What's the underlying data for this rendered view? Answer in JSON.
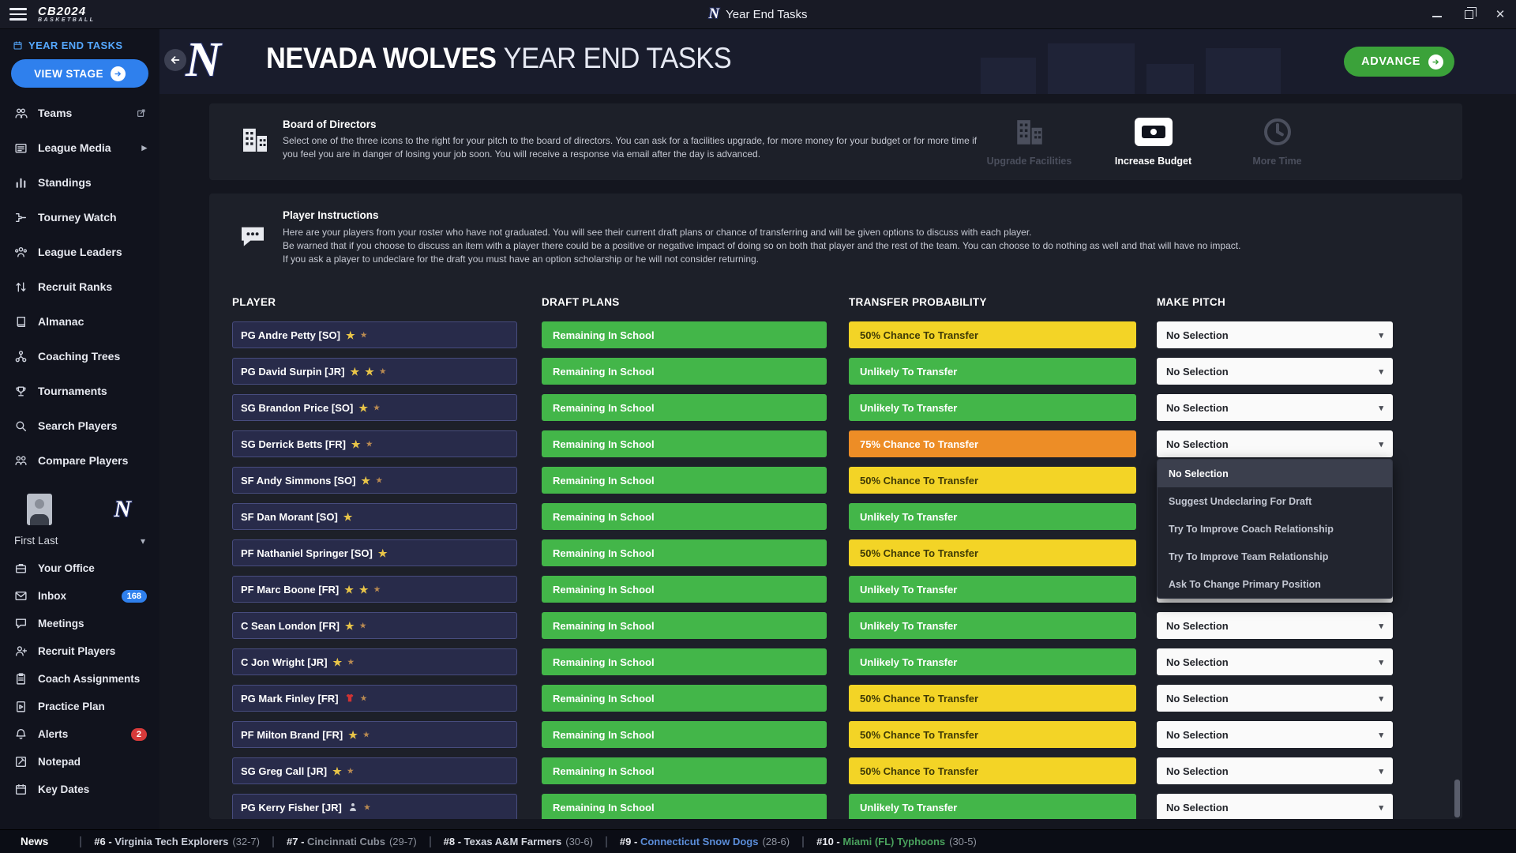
{
  "titlebar": {
    "title": "Year End Tasks",
    "logo_line1": "CB2024",
    "logo_line2": "BASKETBALL",
    "logo_letter": "N"
  },
  "sidebar": {
    "stage_label": "YEAR END TASKS",
    "view_stage_label": "VIEW STAGE",
    "nav_top": [
      {
        "label": "Teams",
        "icon": "teams",
        "trailing": "popout"
      },
      {
        "label": "League Media",
        "icon": "media",
        "trailing": "chevron"
      },
      {
        "label": "Standings",
        "icon": "standings"
      },
      {
        "label": "Tourney Watch",
        "icon": "tourney"
      },
      {
        "label": "League Leaders",
        "icon": "leaders"
      },
      {
        "label": "Recruit Ranks",
        "icon": "ranks"
      },
      {
        "label": "Almanac",
        "icon": "almanac"
      },
      {
        "label": "Coaching Trees",
        "icon": "trees"
      },
      {
        "label": "Tournaments",
        "icon": "tournaments"
      },
      {
        "label": "Search Players",
        "icon": "search"
      },
      {
        "label": "Compare Players",
        "icon": "compare"
      }
    ],
    "profile_name": "First Last",
    "team_logo_letter": "N",
    "nav_bottom": [
      {
        "label": "Your Office",
        "icon": "office"
      },
      {
        "label": "Inbox",
        "icon": "inbox",
        "badge": "168",
        "badge_color": "blue"
      },
      {
        "label": "Meetings",
        "icon": "meetings"
      },
      {
        "label": "Recruit Players",
        "icon": "recruit"
      },
      {
        "label": "Coach Assignments",
        "icon": "assignments"
      },
      {
        "label": "Practice Plan",
        "icon": "practice"
      },
      {
        "label": "Alerts",
        "icon": "alerts",
        "badge": "2",
        "badge_color": "red"
      },
      {
        "label": "Notepad",
        "icon": "notepad"
      },
      {
        "label": "Key Dates",
        "icon": "dates"
      }
    ]
  },
  "header": {
    "title_team": "NEVADA WOLVES",
    "title_rest": "YEAR END TASKS",
    "advance_label": "ADVANCE",
    "logo_letter": "N"
  },
  "board": {
    "title": "Board of Directors",
    "description": "Select one of the three icons to the right for your pitch to the board of directors. You can ask for a facilities upgrade, for more money for your budget or for more time if you feel you are in danger of losing your job soon. You will receive a response via email after the day is advanced.",
    "options": [
      {
        "label": "Upgrade Facilities",
        "icon": "building",
        "state": "disabled"
      },
      {
        "label": "Increase Budget",
        "icon": "cash",
        "state": "selected"
      },
      {
        "label": "More Time",
        "icon": "clock",
        "state": "disabled"
      }
    ]
  },
  "instructions": {
    "title": "Player Instructions",
    "lines": [
      "Here are your players from your roster who have not graduated. You will see their current draft plans or chance of transferring and will be given options to discuss with each player.",
      "Be warned that if you choose to discuss an item with a player there could be a positive or negative impact of doing so on both that player and the rest of the team. You can choose to do nothing as well and that will have no impact.",
      "If you ask a player to undeclare for the draft you must have an option scholarship or he will not consider returning."
    ]
  },
  "table": {
    "headers": [
      "PLAYER",
      "DRAFT PLANS",
      "TRANSFER PROBABILITY",
      "MAKE PITCH"
    ],
    "rows": [
      {
        "player": "PG Andre Petty [SO]",
        "stars": 1,
        "half": true,
        "special": null,
        "draft": "Remaining In School",
        "transfer": "50% Chance To Transfer",
        "transfer_level": "mid",
        "pitch": "No Selection"
      },
      {
        "player": "PG David Surpin [JR]",
        "stars": 2,
        "half": true,
        "special": null,
        "draft": "Remaining In School",
        "transfer": "Unlikely To Transfer",
        "transfer_level": "low",
        "pitch": "No Selection"
      },
      {
        "player": "SG Brandon Price [SO]",
        "stars": 1,
        "half": true,
        "special": null,
        "draft": "Remaining In School",
        "transfer": "Unlikely To Transfer",
        "transfer_level": "low",
        "pitch": "No Selection"
      },
      {
        "player": "SG Derrick Betts [FR]",
        "stars": 1,
        "half": true,
        "special": null,
        "draft": "Remaining In School",
        "transfer": "75% Chance To Transfer",
        "transfer_level": "high",
        "pitch": "No Selection"
      },
      {
        "player": "SF Andy Simmons [SO]",
        "stars": 1,
        "half": true,
        "special": null,
        "draft": "Remaining In School",
        "transfer": "50% Chance To Transfer",
        "transfer_level": "mid",
        "pitch": "No Selection"
      },
      {
        "player": "SF Dan Morant [SO]",
        "stars": 1,
        "half": false,
        "special": null,
        "draft": "Remaining In School",
        "transfer": "Unlikely To Transfer",
        "transfer_level": "low",
        "pitch": "No Selection"
      },
      {
        "player": "PF Nathaniel Springer [SO]",
        "stars": 1,
        "half": false,
        "special": null,
        "draft": "Remaining In School",
        "transfer": "50% Chance To Transfer",
        "transfer_level": "mid",
        "pitch": "No Selection"
      },
      {
        "player": "PF Marc Boone [FR]",
        "stars": 2,
        "half": true,
        "special": null,
        "draft": "Remaining In School",
        "transfer": "Unlikely To Transfer",
        "transfer_level": "low",
        "pitch": "No Selection"
      },
      {
        "player": "C Sean London [FR]",
        "stars": 1,
        "half": true,
        "special": null,
        "draft": "Remaining In School",
        "transfer": "Unlikely To Transfer",
        "transfer_level": "low",
        "pitch": "No Selection"
      },
      {
        "player": "C Jon Wright [JR]",
        "stars": 1,
        "half": true,
        "special": null,
        "draft": "Remaining In School",
        "transfer": "Unlikely To Transfer",
        "transfer_level": "low",
        "pitch": "No Selection"
      },
      {
        "player": "PG Mark Finley [FR]",
        "stars": 0,
        "half": true,
        "special": "redshirt",
        "draft": "Remaining In School",
        "transfer": "50% Chance To Transfer",
        "transfer_level": "mid",
        "pitch": "No Selection"
      },
      {
        "player": "PF Milton Brand [FR]",
        "stars": 1,
        "half": true,
        "special": null,
        "draft": "Remaining In School",
        "transfer": "50% Chance To Transfer",
        "transfer_level": "mid",
        "pitch": "No Selection"
      },
      {
        "player": "SG Greg Call [JR]",
        "stars": 1,
        "half": true,
        "special": null,
        "draft": "Remaining In School",
        "transfer": "50% Chance To Transfer",
        "transfer_level": "mid",
        "pitch": "No Selection"
      },
      {
        "player": "PG Kerry Fisher [JR]",
        "stars": 0,
        "half": true,
        "special": "walkon",
        "draft": "Remaining In School",
        "transfer": "Unlikely To Transfer",
        "transfer_level": "low",
        "pitch": "No Selection"
      }
    ],
    "open_row": 3,
    "open_menu": {
      "options": [
        "No Selection",
        "Suggest Undeclaring For Draft",
        "Try To Improve Coach Relationship",
        "Try To Improve Team Relationship",
        "Ask To Change Primary Position"
      ],
      "highlighted": "No Selection"
    }
  },
  "ticker": {
    "label": "News",
    "items": [
      {
        "rank": "#6",
        "name": "Virginia Tech Explorers",
        "record": "(32-7)",
        "color": "#c9ced9"
      },
      {
        "rank": "#7",
        "name": "Cincinnati Cubs",
        "record": "(29-7)",
        "color": "#8a8f99"
      },
      {
        "rank": "#8",
        "name": "Texas A&M Farmers",
        "record": "(30-6)",
        "color": "#d2d6df"
      },
      {
        "rank": "#9",
        "name": "Connecticut Snow Dogs",
        "record": "(28-6)",
        "color": "#5b8dd9"
      },
      {
        "rank": "#10",
        "name": "Miami (FL) Typhoons",
        "record": "(30-5)",
        "color": "#49a05c"
      }
    ]
  },
  "colors": {
    "accent_blue": "#2f80ed",
    "green": "#43b649",
    "yellow": "#f3d426",
    "orange": "#ed8d26"
  }
}
